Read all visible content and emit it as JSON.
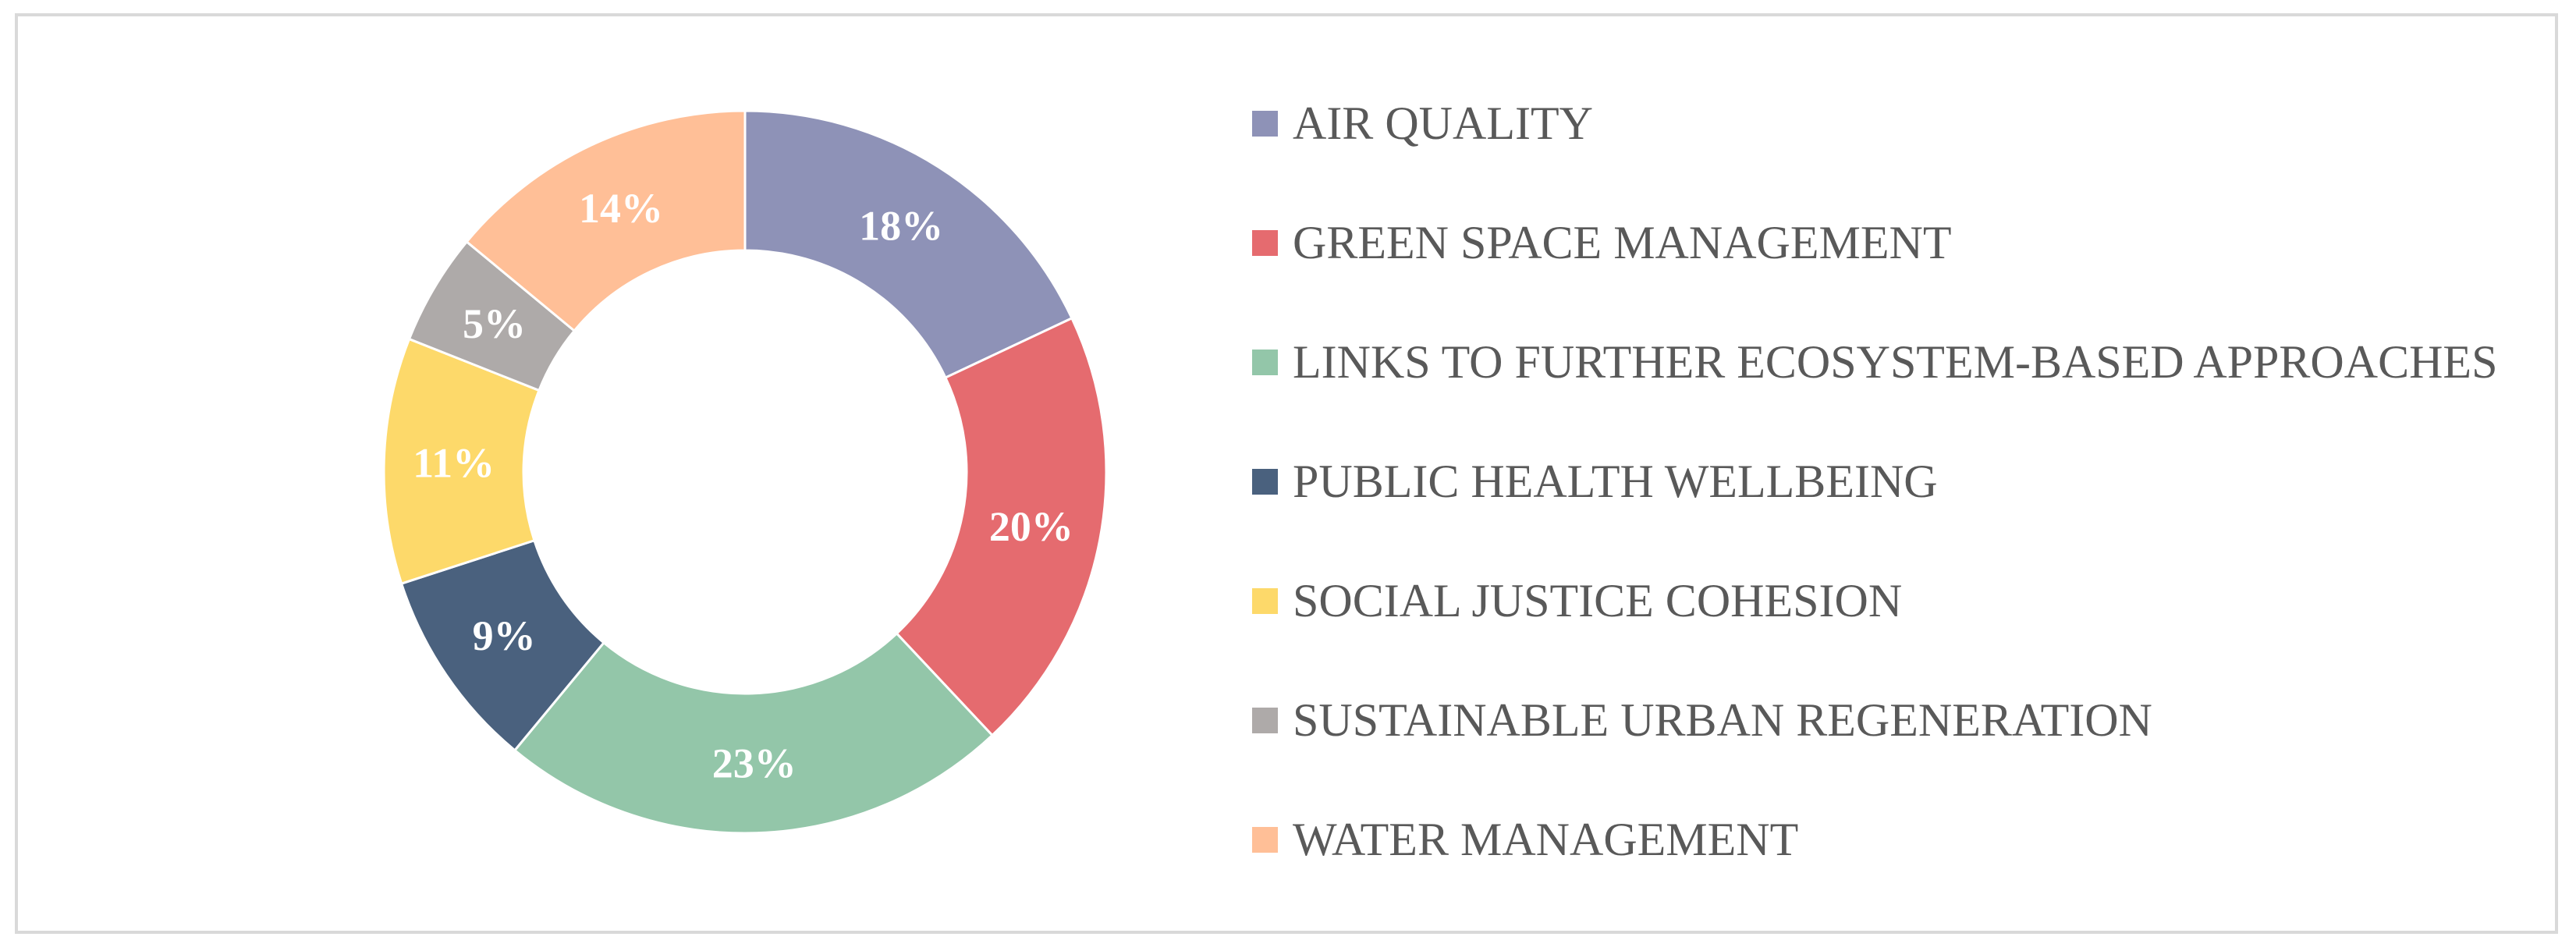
{
  "chart_data": {
    "type": "pie",
    "donut": true,
    "legend_position": "right",
    "series": [
      {
        "slices": [
          {
            "label": "AIR QUALITY",
            "value": 18,
            "data_label": "18%",
            "color": "#8e92b7"
          },
          {
            "label": "GREEN SPACE MANAGEMENT",
            "value": 20,
            "data_label": "20%",
            "color": "#e56b6f"
          },
          {
            "label": "LINKS TO FURTHER ECOSYSTEM-BASED APPROACHES",
            "value": 23,
            "data_label": "23%",
            "color": "#93c6a9"
          },
          {
            "label": "PUBLIC HEALTH WELLBEING",
            "value": 9,
            "data_label": "9%",
            "color": "#4a617e"
          },
          {
            "label": "SOCIAL JUSTICE COHESION",
            "value": 11,
            "data_label": "11%",
            "color": "#fdd96a"
          },
          {
            "label": "SUSTAINABLE URBAN REGENERATION",
            "value": 5,
            "data_label": "5%",
            "color": "#aeaaa9"
          },
          {
            "label": "WATER MANAGEMENT",
            "value": 14,
            "data_label": "14%",
            "color": "#ffbf97"
          }
        ]
      }
    ]
  }
}
